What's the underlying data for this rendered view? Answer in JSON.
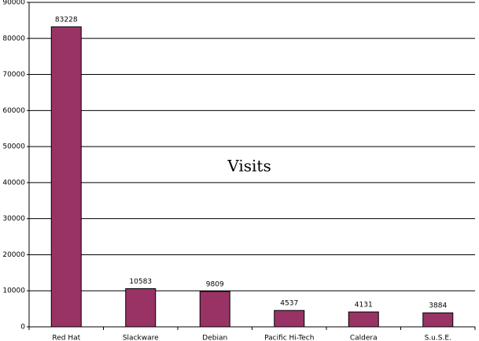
{
  "chart_data": {
    "type": "bar",
    "title": "Visits",
    "categories": [
      "Red Hat",
      "Slackware",
      "Debian",
      "Pacific Hi-Tech",
      "Caldera",
      "S.u.S.E."
    ],
    "values": [
      83228,
      10583,
      9809,
      4537,
      4131,
      3884
    ],
    "color": "#993366",
    "ylim": [
      0,
      90000
    ],
    "yticks": [
      0,
      10000,
      20000,
      30000,
      40000,
      50000,
      60000,
      70000,
      80000,
      90000
    ],
    "grid": true
  }
}
